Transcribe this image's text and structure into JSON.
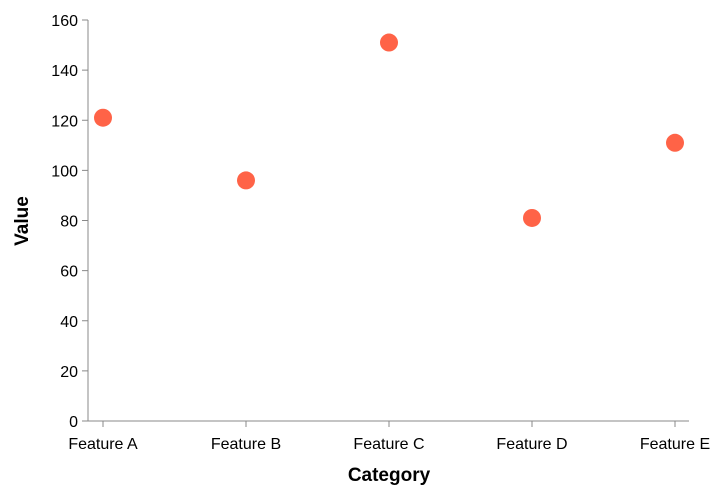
{
  "chart_data": {
    "type": "scatter",
    "categories": [
      "Feature A",
      "Feature B",
      "Feature C",
      "Feature D",
      "Feature E"
    ],
    "values": [
      121,
      96,
      151,
      81,
      111
    ],
    "xlabel": "Category",
    "ylabel": "Value",
    "ylim": [
      0,
      160
    ],
    "yticks": [
      0,
      20,
      40,
      60,
      80,
      100,
      120,
      140,
      160
    ],
    "grid": false,
    "point_color": "#ff6347"
  }
}
